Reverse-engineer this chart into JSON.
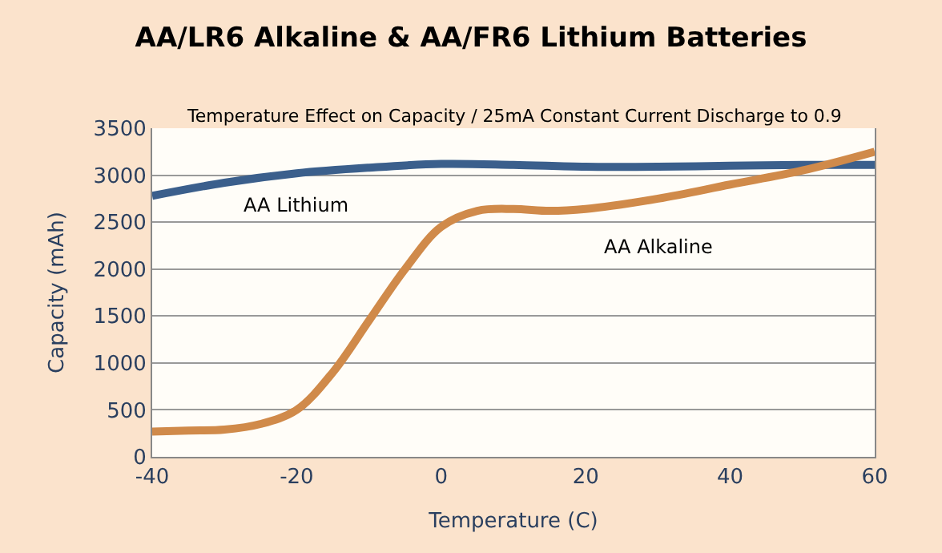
{
  "chart_data": {
    "type": "line",
    "title": "AA/LR6 Alkaline & AA/FR6 Lithium Batteries",
    "subtitle": "Temperature Effect on Capacity / 25mA Constant Current Discharge to 0.9",
    "xlabel": "Temperature (C)",
    "ylabel": "Capacity (mAh)",
    "series": [
      {
        "name": "AA Lithium",
        "color": "#3b5f8c",
        "x": [
          -40,
          -30,
          -20,
          -10,
          0,
          10,
          20,
          30,
          40,
          50,
          60
        ],
        "values": [
          2780,
          2920,
          3020,
          3080,
          3120,
          3110,
          3090,
          3090,
          3100,
          3110,
          3110
        ]
      },
      {
        "name": "AA Alkaline",
        "color": "#d08a4a",
        "x": [
          -40,
          -35,
          -30,
          -25,
          -20,
          -15,
          -10,
          -5,
          0,
          5,
          10,
          15,
          20,
          30,
          40,
          50,
          60
        ],
        "values": [
          270,
          280,
          290,
          350,
          500,
          900,
          1450,
          2000,
          2450,
          2620,
          2640,
          2620,
          2640,
          2750,
          2900,
          3050,
          3250
        ]
      }
    ],
    "xlim": [
      -40,
      60
    ],
    "xticks": [
      -40,
      -20,
      0,
      20,
      40,
      60
    ],
    "ylim": [
      0,
      3500
    ],
    "yticks": [
      0,
      500,
      1000,
      1500,
      2000,
      2500,
      3000,
      3500
    ],
    "grid": "y",
    "legend": false,
    "marker": "none",
    "line_style": "solid"
  }
}
